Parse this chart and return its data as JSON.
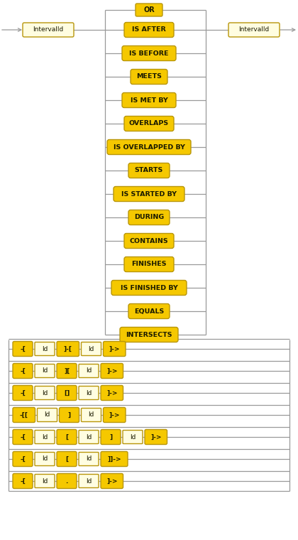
{
  "bg_color": "#ffffff",
  "kw_fill": "#f5c800",
  "kw_edge": "#b8960a",
  "id_fill": "#fffde0",
  "id_edge": "#b8960a",
  "line_color": "#999999",
  "text_color": "#1a1a00",
  "or_label": "OR",
  "interval_label": "IntervalId",
  "keywords": [
    "IS AFTER",
    "IS BEFORE",
    "MEETS",
    "IS MET BY",
    "OVERLAPS",
    "IS OVERLAPPED BY",
    "STARTS",
    "IS STARTED BY",
    "DURING",
    "CONTAINS",
    "FINISHES",
    "IS FINISHED BY",
    "EQUALS",
    "INTERSECTS"
  ],
  "bottom_rows": [
    [
      "-[",
      "Id",
      "]-[",
      "Id",
      "]->"
    ],
    [
      "-[",
      "Id",
      "][",
      "Id",
      "]->"
    ],
    [
      "-[",
      "Id",
      "[]",
      "Id",
      "]->"
    ],
    [
      "-[[",
      "Id",
      "]",
      "Id",
      "]->"
    ],
    [
      "-[",
      "Id",
      "[",
      "Id",
      "]",
      "Id",
      "]->"
    ],
    [
      "-[",
      "Id",
      "[",
      "Id",
      "]]->"
    ],
    [
      "-[",
      "Id",
      ".",
      "Id",
      "]->"
    ]
  ],
  "figw": 4.2,
  "figh": 7.6,
  "dpi": 100
}
